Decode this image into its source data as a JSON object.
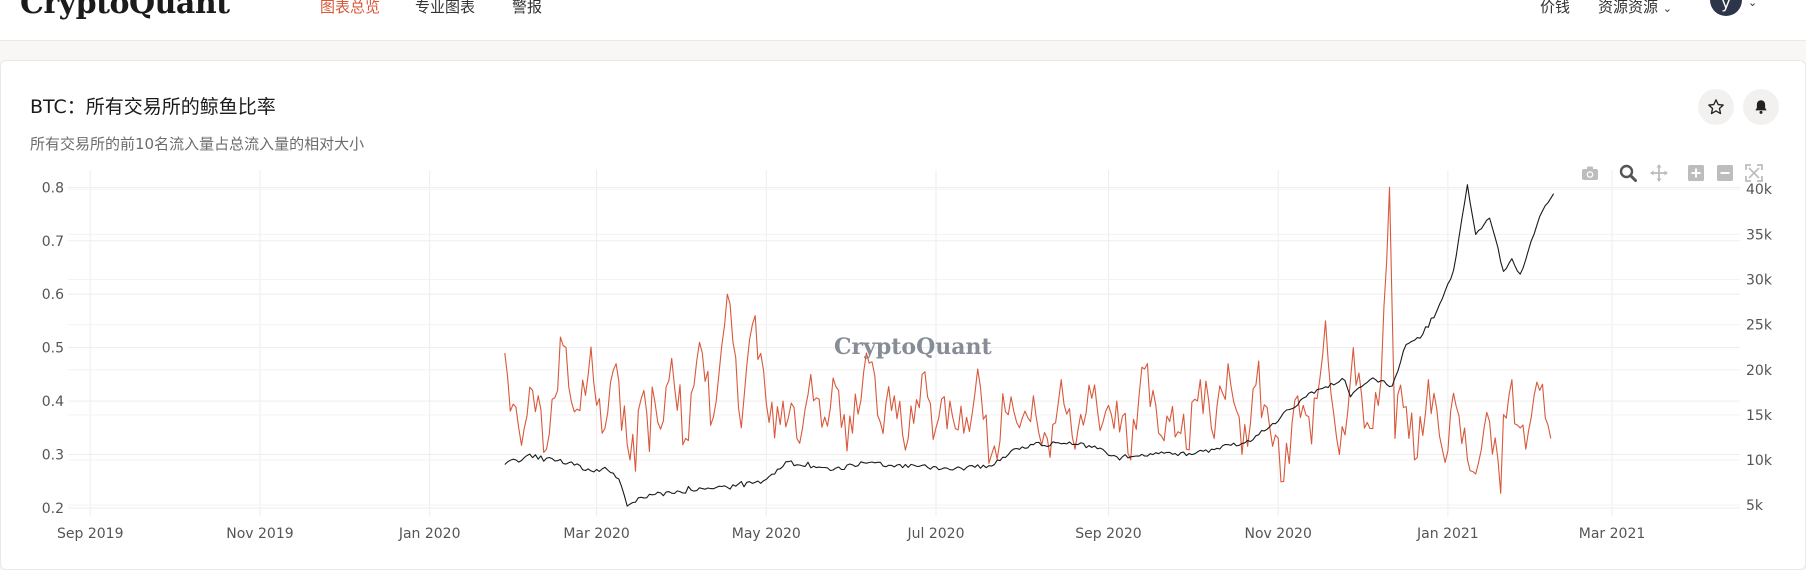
{
  "header": {
    "logo": "CryptoQuant",
    "nav": [
      {
        "label": "图表总览",
        "active": true
      },
      {
        "label": "专业图表",
        "active": false
      },
      {
        "label": "警报",
        "active": false
      }
    ],
    "right": {
      "pricing": "价钱",
      "resources": "资源资源",
      "resources_caret": "⌄",
      "avatar": "y",
      "avatar_caret": "⌄"
    }
  },
  "card": {
    "title": "BTC：所有交易所的鲸鱼比率",
    "subtitle": "所有交易所的前10名流入量占总流入量的相对大小",
    "watermark": "CryptoQuant",
    "buttons": [
      {
        "name": "star-button",
        "icon": "star-icon"
      },
      {
        "name": "bell-button",
        "icon": "bell-icon"
      }
    ]
  },
  "colors": {
    "ratio": "#d9583b",
    "price": "#1b1b1b",
    "grid": "#ededed",
    "accent": "#d9583b"
  },
  "chart_data": {
    "type": "line",
    "title": "",
    "xlabel": "",
    "ylabel": "",
    "x_ticks": [
      "Sep 2019",
      "Nov 2019",
      "Jan 2020",
      "Mar 2020",
      "May 2020",
      "Jul 2020",
      "Sep 2020",
      "Nov 2020",
      "Jan 2021",
      "Mar 2021"
    ],
    "y_ticks": [
      "0.2",
      "0.3",
      "0.4",
      "0.5",
      "0.6",
      "0.7",
      "0.8"
    ],
    "y2_ticks": [
      "5k",
      "10k",
      "15k",
      "20k",
      "25k",
      "30k",
      "35k",
      "40k"
    ],
    "xlim": [
      "2019-08-24",
      "2021-04-16"
    ],
    "ylim": [
      0.185,
      0.81
    ],
    "y2lim": [
      3800,
      40800
    ],
    "series": [
      {
        "name": "",
        "axis": "y",
        "x": [
          "2020-01-28",
          "2020-02-02",
          "2020-02-07",
          "2020-02-12",
          "2020-02-17",
          "2020-02-22",
          "2020-02-27",
          "2020-03-03",
          "2020-03-08",
          "2020-03-13",
          "2020-03-18",
          "2020-03-23",
          "2020-03-28",
          "2020-04-02",
          "2020-04-07",
          "2020-04-12",
          "2020-04-17",
          "2020-04-22",
          "2020-04-27",
          "2020-05-02",
          "2020-05-07",
          "2020-05-12",
          "2020-05-17",
          "2020-05-22",
          "2020-05-27",
          "2020-06-01",
          "2020-06-06",
          "2020-06-11",
          "2020-06-16",
          "2020-06-21",
          "2020-06-26",
          "2020-07-01",
          "2020-07-06",
          "2020-07-11",
          "2020-07-16",
          "2020-07-21",
          "2020-07-26",
          "2020-07-31",
          "2020-08-05",
          "2020-08-10",
          "2020-08-15",
          "2020-08-20",
          "2020-08-25",
          "2020-08-30",
          "2020-09-04",
          "2020-09-09",
          "2020-09-14",
          "2020-09-19",
          "2020-09-24",
          "2020-09-29",
          "2020-10-04",
          "2020-10-09",
          "2020-10-14",
          "2020-10-19",
          "2020-10-24",
          "2020-10-29",
          "2020-11-03",
          "2020-11-08",
          "2020-11-13",
          "2020-11-18",
          "2020-11-23",
          "2020-11-28",
          "2020-12-03",
          "2020-12-08",
          "2020-12-11",
          "2020-12-13",
          "2020-12-15",
          "2020-12-20",
          "2020-12-25",
          "2020-12-30",
          "2021-01-04",
          "2021-01-09",
          "2021-01-14",
          "2021-01-19",
          "2021-01-24",
          "2021-01-29",
          "2021-02-03",
          "2021-02-07"
        ],
        "values": [
          0.49,
          0.35,
          0.42,
          0.31,
          0.52,
          0.38,
          0.45,
          0.34,
          0.47,
          0.29,
          0.42,
          0.36,
          0.48,
          0.33,
          0.51,
          0.37,
          0.6,
          0.35,
          0.56,
          0.36,
          0.4,
          0.33,
          0.45,
          0.37,
          0.42,
          0.34,
          0.49,
          0.36,
          0.41,
          0.33,
          0.45,
          0.35,
          0.4,
          0.34,
          0.46,
          0.3,
          0.38,
          0.35,
          0.41,
          0.33,
          0.44,
          0.31,
          0.43,
          0.36,
          0.4,
          0.29,
          0.46,
          0.34,
          0.39,
          0.31,
          0.44,
          0.33,
          0.47,
          0.3,
          0.43,
          0.35,
          0.25,
          0.41,
          0.32,
          0.55,
          0.3,
          0.5,
          0.36,
          0.44,
          0.8,
          0.33,
          0.43,
          0.29,
          0.44,
          0.31,
          0.39,
          0.27,
          0.35,
          0.29,
          0.44,
          0.31,
          0.42,
          0.33
        ]
      },
      {
        "name": "",
        "axis": "y2",
        "x": [
          "2020-01-28",
          "2020-02-05",
          "2020-02-12",
          "2020-02-20",
          "2020-02-28",
          "2020-03-05",
          "2020-03-09",
          "2020-03-12",
          "2020-03-14",
          "2020-03-20",
          "2020-03-31",
          "2020-04-10",
          "2020-04-20",
          "2020-04-30",
          "2020-05-08",
          "2020-05-15",
          "2020-05-25",
          "2020-06-05",
          "2020-06-15",
          "2020-06-25",
          "2020-07-05",
          "2020-07-15",
          "2020-07-22",
          "2020-07-28",
          "2020-08-05",
          "2020-08-15",
          "2020-08-25",
          "2020-09-03",
          "2020-09-10",
          "2020-09-20",
          "2020-10-01",
          "2020-10-10",
          "2020-10-20",
          "2020-10-28",
          "2020-11-05",
          "2020-11-15",
          "2020-11-25",
          "2020-11-27",
          "2020-12-05",
          "2020-12-12",
          "2020-12-17",
          "2020-12-22",
          "2020-12-28",
          "2021-01-03",
          "2021-01-08",
          "2021-01-11",
          "2021-01-16",
          "2021-01-21",
          "2021-01-24",
          "2021-01-27",
          "2021-01-31",
          "2021-02-04",
          "2021-02-08"
        ],
        "values": [
          9500,
          10500,
          10200,
          9700,
          8800,
          8900,
          7900,
          4900,
          5300,
          6200,
          6500,
          6900,
          7100,
          7700,
          9800,
          9300,
          8900,
          9700,
          9400,
          9300,
          9100,
          9200,
          9500,
          11000,
          11700,
          11800,
          11600,
          10500,
          10400,
          10900,
          10600,
          11300,
          11900,
          13400,
          15600,
          17800,
          18800,
          17000,
          19100,
          18200,
          22800,
          23500,
          26500,
          31000,
          40500,
          35000,
          36800,
          30900,
          32300,
          30600,
          34300,
          37600,
          39500
        ]
      }
    ]
  }
}
